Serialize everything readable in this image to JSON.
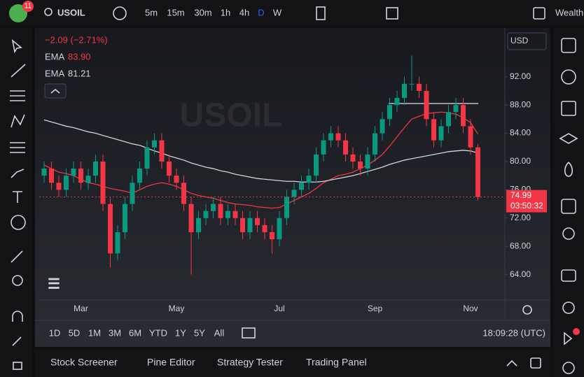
{
  "toolbar": {
    "badge": "11",
    "symbol": "USOIL",
    "intervals": [
      "5m",
      "15m",
      "30m",
      "1h",
      "4h",
      "D",
      "W"
    ],
    "account": "Wealth"
  },
  "range_bar": {
    "ranges": [
      "1D",
      "5D",
      "1M",
      "3M",
      "6M",
      "YTD",
      "1Y",
      "5Y",
      "All"
    ],
    "clock": "18:09:28 (UTC)"
  },
  "bottom_tabs": [
    "Stock Screener",
    "Pine Editor",
    "Strategy Tester",
    "Trading Panel"
  ],
  "currency": "USD",
  "chart_data": {
    "type": "candlestick",
    "watermark": "USOIL",
    "change": "−2.09 (−2.71%)",
    "countdown": "03:50:32",
    "categories": [
      null,
      null,
      null,
      null,
      null,
      "Mar",
      null,
      null,
      null,
      null,
      null,
      null,
      null,
      null,
      null,
      null,
      null,
      null,
      "May",
      null,
      null,
      null,
      null,
      null,
      null,
      null,
      null,
      null,
      null,
      null,
      null,
      null,
      "Jul",
      null,
      null,
      null,
      null,
      null,
      null,
      null,
      null,
      null,
      null,
      null,
      null,
      "Sep",
      null,
      null,
      null,
      null,
      null,
      null,
      null,
      null,
      null,
      null,
      null,
      null,
      "Nov",
      null
    ],
    "open": [
      78,
      79,
      77,
      76,
      78,
      79,
      77,
      78,
      80,
      74,
      67,
      70,
      74,
      77,
      79,
      82,
      83,
      80,
      78,
      77,
      74,
      70,
      72,
      73,
      74,
      72,
      73,
      72,
      70,
      72,
      71,
      70,
      69,
      72,
      75,
      76,
      77,
      78,
      81,
      83,
      84,
      83,
      81,
      80,
      79,
      81,
      84,
      86,
      88,
      89,
      91,
      91,
      90,
      86,
      83,
      85,
      87,
      88,
      85,
      82
    ],
    "high": [
      80,
      80,
      78,
      79,
      80,
      80,
      79,
      81,
      81,
      75,
      71,
      75,
      78,
      80,
      83,
      84,
      84,
      81,
      79,
      78,
      75,
      73,
      74,
      75,
      75,
      74,
      74,
      73,
      73,
      73,
      72,
      71,
      73,
      76,
      77,
      78,
      79,
      82,
      84,
      85,
      85,
      84,
      82,
      81,
      82,
      85,
      87,
      89,
      90,
      92,
      95,
      92,
      91,
      87,
      86,
      88,
      89,
      89,
      86,
      82.5
    ],
    "low": [
      77,
      76,
      75,
      75,
      77,
      76,
      76,
      77,
      73,
      65,
      66,
      69,
      73,
      76,
      78,
      81,
      79,
      77,
      76,
      73,
      64,
      69,
      71,
      72,
      71,
      71,
      71,
      69,
      69,
      70,
      69,
      67,
      68,
      71,
      74,
      75,
      76,
      77,
      80,
      82,
      82,
      80,
      79,
      78,
      78,
      80,
      83,
      85,
      87,
      88,
      90,
      89,
      85,
      82,
      82,
      84,
      86,
      84,
      81,
      74.5
    ],
    "close": [
      79,
      77,
      76,
      78,
      79,
      77,
      78,
      80,
      74,
      67,
      70,
      74,
      77,
      79,
      82,
      83,
      80,
      78,
      77,
      74,
      70,
      72,
      73,
      74,
      72,
      73,
      72,
      70,
      72,
      71,
      70,
      69,
      72,
      75,
      76,
      77,
      78,
      81,
      83,
      84,
      83,
      81,
      80,
      79,
      81,
      84,
      86,
      88,
      89,
      91,
      91,
      90,
      86,
      83,
      85,
      87,
      88,
      85,
      82,
      74.99
    ],
    "up_color": "#089981",
    "down_color": "#f23645",
    "series": [
      {
        "name": "EMA",
        "color": "#f23645",
        "legend_label": "83.90",
        "values": [
          79.5,
          79,
          78.5,
          78.3,
          78,
          77.5,
          77,
          76.8,
          76.5,
          76.2,
          76,
          75.8,
          75.5,
          76,
          76.5,
          76.8,
          77,
          76.8,
          76.5,
          76,
          75.5,
          75.2,
          75,
          74.8,
          74.5,
          74.2,
          74,
          73.9,
          73.8,
          73.6,
          73.5,
          73.4,
          73.5,
          74,
          74.5,
          75,
          75.5,
          76.2,
          77,
          77.5,
          78,
          78.2,
          78.5,
          79,
          79.5,
          80.2,
          81,
          82.2,
          83.5,
          84.8,
          86,
          86.4,
          86.8,
          86.9,
          87,
          86.9,
          86.7,
          86.2,
          85.5,
          83.9
        ]
      },
      {
        "name": "EMA",
        "color": "#d1d4dc",
        "legend_label": "81.21",
        "values": [
          85.9,
          85.6,
          85.3,
          85,
          84.8,
          84.5,
          84.2,
          84,
          83.7,
          83.4,
          83.1,
          82.8,
          82.5,
          82.3,
          81.9,
          81.5,
          81.2,
          80.8,
          80.5,
          80.2,
          79.8,
          79.5,
          79.2,
          79,
          78.7,
          78.5,
          78.2,
          78,
          77.8,
          77.6,
          77.5,
          77.4,
          77.3,
          77.2,
          77.2,
          77.1,
          77.1,
          77.1,
          77.2,
          77.4,
          77.6,
          77.8,
          78,
          78.3,
          78.6,
          78.9,
          79.2,
          79.6,
          79.9,
          80.2,
          80.4,
          80.6,
          80.8,
          81,
          81.2,
          81.4,
          81.5,
          81.6,
          81.5,
          81.21
        ]
      }
    ],
    "ylim": [
      60.5,
      98.7
    ],
    "yticks": [
      {
        "value": 64,
        "label": "64.00"
      },
      {
        "value": 68,
        "label": "68.00"
      },
      {
        "value": 72,
        "label": "72.00"
      },
      {
        "value": 76,
        "label": "76.00"
      },
      {
        "value": 80,
        "label": "80.00"
      },
      {
        "value": 84,
        "label": "84.00"
      },
      {
        "value": 88,
        "label": "88.00"
      },
      {
        "value": 92,
        "label": "92.00"
      }
    ],
    "grid": false
  }
}
